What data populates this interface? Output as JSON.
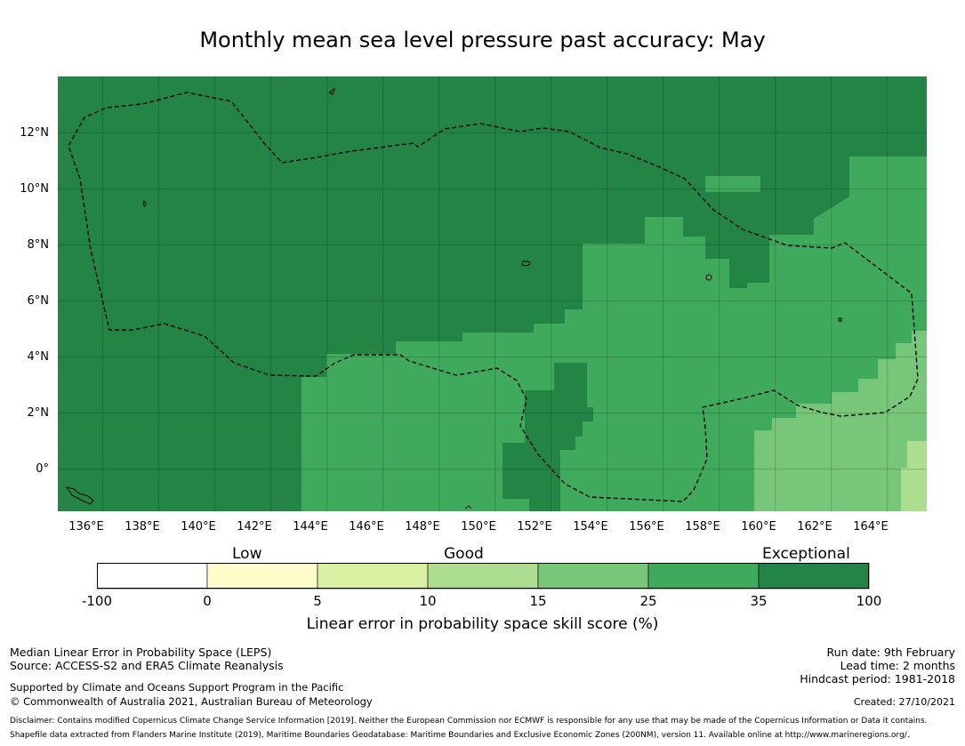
{
  "title": "Monthly mean sea level pressure past accuracy: May",
  "map": {
    "y_ticks": [
      "12°N",
      "10°N",
      "8°N",
      "6°N",
      "4°N",
      "2°N",
      "0°"
    ],
    "x_ticks": [
      "136°E",
      "138°E",
      "140°E",
      "142°E",
      "144°E",
      "146°E",
      "148°E",
      "150°E",
      "152°E",
      "154°E",
      "156°E",
      "158°E",
      "160°E",
      "162°E",
      "164°E"
    ],
    "lat_range": [
      -1.5,
      14
    ],
    "lon_range": [
      134.4,
      165.4
    ],
    "region": "Federated States of Micronesia and Palau EEZ",
    "colors": {
      "exceptional": "#238446",
      "good_high": "#40aa5c",
      "good": "#78c679",
      "fair": "#addd8e",
      "low": "#d9f0a3",
      "very_low": "#ffffcc",
      "none": "#ffffff"
    }
  },
  "colorbar": {
    "categories": [
      "Low",
      "Good",
      "Exceptional"
    ],
    "ticks": [
      "-100",
      "0",
      "5",
      "10",
      "15",
      "25",
      "35",
      "100"
    ],
    "bins": [
      {
        "from": -100,
        "to": 0,
        "color": "#ffffff"
      },
      {
        "from": 0,
        "to": 5,
        "color": "#ffffcc"
      },
      {
        "from": 5,
        "to": 10,
        "color": "#d9f0a3"
      },
      {
        "from": 10,
        "to": 15,
        "color": "#addd8e"
      },
      {
        "from": 15,
        "to": 25,
        "color": "#78c679"
      },
      {
        "from": 25,
        "to": 35,
        "color": "#40aa5c"
      },
      {
        "from": 35,
        "to": 100,
        "color": "#238446"
      }
    ],
    "label": "Linear error in probability space skill score (%)"
  },
  "footer": {
    "left_line1": "Median Linear Error in Probability Space (LEPS)",
    "left_line2": "Source: ACCESS-S2 and ERA5 Climate Reanalysis",
    "left_line3": "Supported by Climate and Oceans Support Program in the Pacific",
    "left_line4": "© Commonwealth of Australia 2021, Australian Bureau of Meteorology",
    "right_line1": "Run date: 9th February",
    "right_line2": "Lead time: 2 months",
    "right_line3": "Hindcast period: 1981-2018",
    "created": "Created: 27/10/2021",
    "disclaimer1": "Disclaimer: Contains modified Copernicus Climate Change Service Information [2019]. Neither the European Commission nor ECMWF is responsible for any use that may be made of the Copernicus Information or Data it contains.",
    "disclaimer2": "Shapefile data extracted from Flanders Marine Institute (2019), Maritime Boundaries Geodatabase: Maritime Boundaries and Exclusive Economic Zones (200NM), version 11. Available online at http://www.marineregions.org/."
  }
}
